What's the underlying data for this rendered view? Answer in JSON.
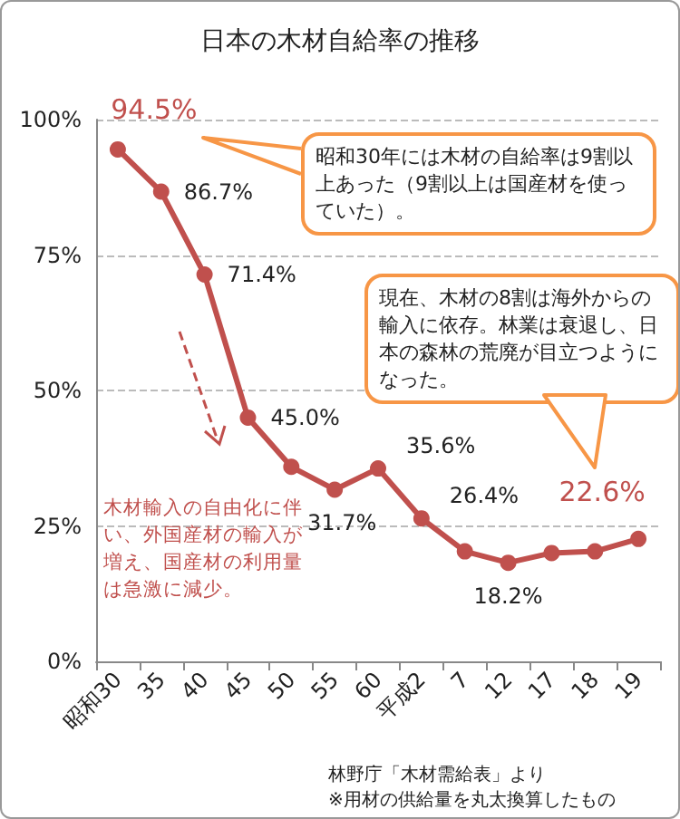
{
  "chart_data": {
    "type": "line",
    "title": "日本の木材自給率の推移",
    "categories": [
      "昭和30",
      "35",
      "40",
      "45",
      "50",
      "55",
      "60",
      "平成2",
      "7",
      "12",
      "17",
      "18",
      "19"
    ],
    "series": [
      {
        "color": "#c0504d",
        "values": [
          94.5,
          86.7,
          71.4,
          45.0,
          35.9,
          31.7,
          35.6,
          26.4,
          20.3,
          18.2,
          20.0,
          20.3,
          22.6
        ],
        "value_labels": [
          "94.5%",
          "86.7%",
          "71.4%",
          "45.0%",
          null,
          "31.7%",
          "35.6%",
          "26.4%",
          null,
          "18.2%",
          null,
          null,
          "22.6%"
        ]
      }
    ],
    "ylim": [
      0,
      100
    ],
    "yticks": [
      {
        "value": 0,
        "label": "0%"
      },
      {
        "value": 25,
        "label": "25%"
      },
      {
        "value": 50,
        "label": "50%"
      },
      {
        "value": 75,
        "label": "75%"
      },
      {
        "value": 100,
        "label": "100%"
      }
    ],
    "grid": "y",
    "marker": "circle",
    "line_style": "solid",
    "annotations": [
      "昭和30年には木材の自給率は9割以上あった（9割以上は国産材を使っていた）。",
      "現在、木材の8割は海外からの輸入に依存。林業は衰退し、日本の森林の荒廃が目立つようになった。",
      "木材輸入の自由化に伴い、外国産材の輸入が増え、国産材の利用量は急激に減少。",
      "林野庁「木材需給表」より",
      "※用材の供給量を丸太換算したもの"
    ]
  }
}
